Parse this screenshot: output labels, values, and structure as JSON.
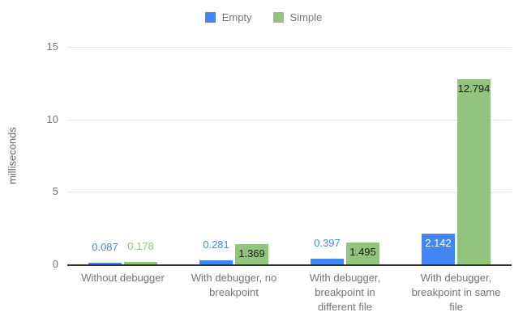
{
  "chart_data": {
    "type": "bar",
    "title": "",
    "xlabel": "",
    "ylabel": "milliseconds",
    "ylim": [
      0,
      15
    ],
    "yticks": [
      0,
      5,
      10,
      15
    ],
    "grid": true,
    "legend_position": "top",
    "categories": [
      "Without debugger",
      "With debugger, no breakpoint",
      "With debugger, breakpoint in different file",
      "With debugger, breakpoint in same file"
    ],
    "series": [
      {
        "name": "Empty",
        "color": "#4285f4",
        "label_inside_color": "#ffffff",
        "values": [
          0.087,
          0.281,
          0.397,
          2.142
        ],
        "labels": [
          "0.087",
          "0.281",
          "0.397",
          "2.142"
        ]
      },
      {
        "name": "Simple",
        "color": "#93c47d",
        "label_inside_color": "#1a1a1a",
        "values": [
          0.178,
          1.369,
          1.495,
          12.794
        ],
        "labels": [
          "0.178",
          "1.369",
          "1.495",
          "12.794"
        ]
      }
    ]
  }
}
